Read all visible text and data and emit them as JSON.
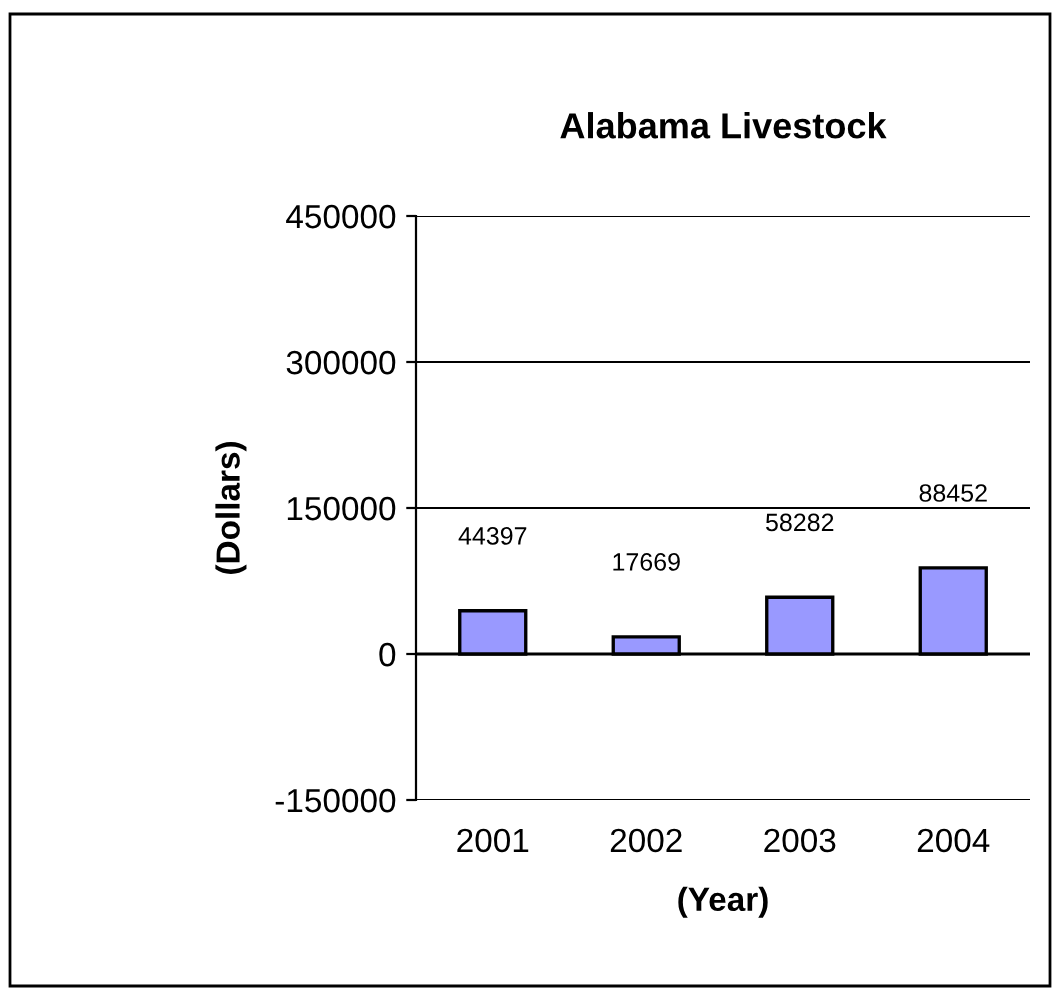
{
  "chart_data": {
    "type": "bar",
    "title": "Alabama Livestock",
    "xlabel": "(Year)",
    "ylabel": "(Dollars)",
    "categories": [
      "2001",
      "2002",
      "2003",
      "2004"
    ],
    "values": [
      44397,
      17669,
      58282,
      88452
    ],
    "color": "#9999ff",
    "ylim": [
      -150000,
      450000
    ],
    "yticks": [
      -150000,
      0,
      150000,
      300000,
      450000
    ],
    "grid": "y",
    "data_labels": true,
    "legend": false
  }
}
